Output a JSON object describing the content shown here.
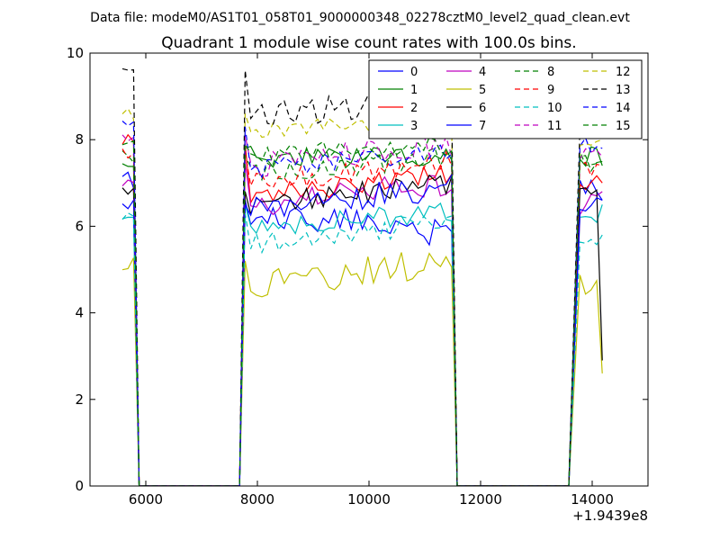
{
  "chart_data": {
    "type": "line",
    "suptitle": "Data file: modeM0/AS1T01_058T01_9000000348_02278cztM0_level2_quad_clean.evt",
    "title": "Quadrant 1 module wise count rates with 100.0s bins.",
    "xlabel": "",
    "ylabel": "",
    "xlim": [
      5000,
      15000
    ],
    "ylim": [
      0,
      10
    ],
    "x_offset_label": "+1.9439e8",
    "xticks": [
      6000,
      8000,
      10000,
      12000,
      14000
    ],
    "xtick_labels": [
      "6000",
      "8000",
      "10000",
      "12000",
      "14000"
    ],
    "yticks": [
      0,
      2,
      4,
      6,
      8,
      10
    ],
    "ytick_labels": [
      "0",
      "2",
      "4",
      "6",
      "8",
      "10"
    ],
    "grid": false,
    "legend": {
      "placement": "top-right",
      "columns": 4
    },
    "segments": [
      {
        "start": 5580,
        "end": 5780
      },
      {
        "start": 7780,
        "end": 11480
      },
      {
        "start": 13780,
        "end": 14180
      }
    ],
    "zero_runs": [
      {
        "from": 5880,
        "to": 7680
      },
      {
        "from": 11580,
        "to": 13580
      }
    ],
    "series": [
      {
        "name": "0",
        "color": "#0000ff",
        "style": "solid",
        "base": 6.3,
        "gaps": [
          6.6,
          7.0
        ],
        "amp": 0.35,
        "trend": -0.45,
        "start": 7.2,
        "end": 6.6
      },
      {
        "name": "1",
        "color": "#008000",
        "style": "solid",
        "base": 7.6,
        "gaps": [
          7.8,
          7.6
        ],
        "amp": 0.25,
        "trend": 0.0,
        "start": 7.3,
        "end": 7.4
      },
      {
        "name": "2",
        "color": "#ff0000",
        "style": "solid",
        "base": 6.7,
        "gaps": [
          7.9,
          7.0
        ],
        "amp": 0.25,
        "trend": 0.5,
        "start": 8.0,
        "end": 7.0
      },
      {
        "name": "3",
        "color": "#00bfbf",
        "style": "solid",
        "base": 6.0,
        "gaps": [
          6.5,
          6.3
        ],
        "amp": 0.25,
        "trend": 0.3,
        "start": 6.2,
        "end": 6.5
      },
      {
        "name": "4",
        "color": "#bf00bf",
        "style": "solid",
        "base": 6.5,
        "gaps": [
          7.5,
          6.5
        ],
        "amp": 0.3,
        "trend": 0.5,
        "start": 7.0,
        "end": 6.8
      },
      {
        "name": "5",
        "color": "#bfbf00",
        "style": "solid",
        "base": 4.6,
        "gaps": [
          5.2,
          4.6
        ],
        "amp": 0.35,
        "trend": 0.6,
        "start": 5.1,
        "end": 2.6
      },
      {
        "name": "6",
        "color": "#000000",
        "style": "solid",
        "base": 6.5,
        "gaps": [
          6.8,
          6.8
        ],
        "amp": 0.25,
        "trend": 0.5,
        "start": 6.8,
        "end": 2.9
      },
      {
        "name": "7",
        "color": "#0000ff",
        "style": "solid",
        "base": 6.4,
        "gaps": [
          6.5,
          6.6
        ],
        "amp": 0.3,
        "trend": 0.5,
        "start": 6.5,
        "end": 6.6
      },
      {
        "name": "8",
        "color": "#008000",
        "style": "dashed",
        "base": 7.2,
        "gaps": [
          7.6,
          7.5
        ],
        "amp": 0.25,
        "trend": 0.4,
        "start": 7.6,
        "end": 7.5
      },
      {
        "name": "9",
        "color": "#ff0000",
        "style": "dashed",
        "base": 7.0,
        "gaps": [
          7.7,
          7.4
        ],
        "amp": 0.25,
        "trend": 0.5,
        "start": 7.7,
        "end": 7.4
      },
      {
        "name": "10",
        "color": "#00bfbf",
        "style": "dashed",
        "base": 5.6,
        "gaps": [
          6.3,
          5.8
        ],
        "amp": 0.25,
        "trend": 0.5,
        "start": 6.3,
        "end": 5.8
      },
      {
        "name": "11",
        "color": "#bf00bf",
        "style": "dashed",
        "base": 7.4,
        "gaps": [
          8.1,
          7.6
        ],
        "amp": 0.3,
        "trend": 0.5,
        "start": 8.1,
        "end": 7.6
      },
      {
        "name": "12",
        "color": "#bfbf00",
        "style": "dashed",
        "base": 8.1,
        "gaps": [
          8.6,
          8.0
        ],
        "amp": 0.25,
        "trend": 0.4,
        "start": 8.6,
        "end": 8.0
      },
      {
        "name": "13",
        "color": "#000000",
        "style": "dashed",
        "base": 8.5,
        "gaps": [
          9.6,
          8.4
        ],
        "amp": 0.3,
        "trend": 0.5,
        "start": 9.6,
        "end": 8.4
      },
      {
        "name": "14",
        "color": "#0000ff",
        "style": "dashed",
        "base": 7.3,
        "gaps": [
          8.3,
          7.8
        ],
        "amp": 0.25,
        "trend": 0.5,
        "start": 8.3,
        "end": 7.8
      },
      {
        "name": "15",
        "color": "#008000",
        "style": "dashed",
        "base": 7.6,
        "gaps": [
          7.9,
          7.5
        ],
        "amp": 0.25,
        "trend": 0.3,
        "start": 7.9,
        "end": 7.5
      }
    ]
  }
}
